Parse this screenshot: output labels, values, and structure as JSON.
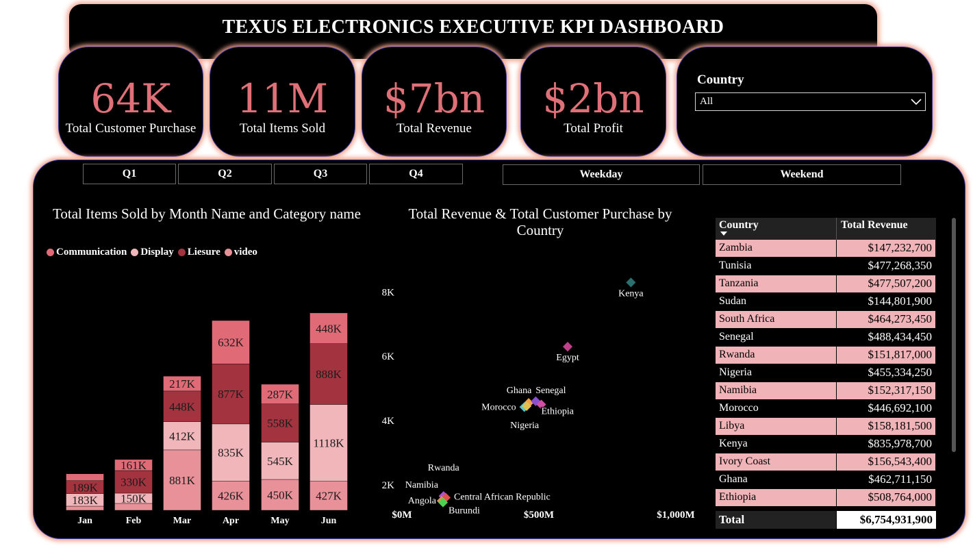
{
  "title": "TEXUS ELECTRONICS EXECUTIVE KPI DASHBOARD",
  "kpis": [
    {
      "value": "64K",
      "label": "Total Customer Purchase"
    },
    {
      "value": "11M",
      "label": "Total Items Sold"
    },
    {
      "value": "$7bn",
      "label": "Total Revenue"
    },
    {
      "value": "$2bn",
      "label": "Total Profit"
    }
  ],
  "country_slicer": {
    "title": "Country",
    "selected": "All"
  },
  "quarter_buttons": [
    "Q1",
    "Q2",
    "Q3",
    "Q4"
  ],
  "day_buttons": [
    "Weekday",
    "Weekend"
  ],
  "colors": {
    "accent": "#e07078",
    "communication": "#e06b76",
    "display": "#f0b6ba",
    "liesure": "#a3343f",
    "video": "#e89198"
  },
  "bar_chart": {
    "title": "Total Items Sold by Month Name and Category name",
    "legend": [
      "Communication",
      "Display",
      "Liesure",
      "video"
    ]
  },
  "scatter_chart": {
    "title": "Total Revenue & Total Customer Purchase by Country"
  },
  "chart_data": [
    {
      "type": "bar",
      "title": "Total Items Sold by Month Name and Category name",
      "stacked": true,
      "categories": [
        "Jan",
        "Feb",
        "Mar",
        "Apr",
        "May",
        "Jun"
      ],
      "ylim": [
        0,
        3350000
      ],
      "series": [
        {
          "name": "video",
          "values": [
            60000,
            100000,
            881000,
            426000,
            450000,
            427000
          ],
          "labels": [
            "",
            "",
            "881K",
            "426K",
            "450K",
            "427K"
          ]
        },
        {
          "name": "Display",
          "values": [
            183000,
            150000,
            412000,
            835000,
            545000,
            1118000
          ],
          "labels": [
            "183K",
            "150K",
            "412K",
            "835K",
            "545K",
            "1118K"
          ]
        },
        {
          "name": "Liesure",
          "values": [
            189000,
            330000,
            448000,
            877000,
            558000,
            888000
          ],
          "labels": [
            "189K",
            "330K",
            "448K",
            "877K",
            "558K",
            "888K"
          ]
        },
        {
          "name": "Communication",
          "values": [
            100000,
            161000,
            217000,
            632000,
            287000,
            448000
          ],
          "labels": [
            "",
            "161K",
            "217K",
            "632K",
            "287K",
            "448K"
          ]
        }
      ]
    },
    {
      "type": "scatter",
      "title": "Total Revenue & Total Customer Purchase by Country",
      "x_ticks": [
        "$0M",
        "$500M",
        "$1,000M"
      ],
      "y_ticks": [
        "2K",
        "4K",
        "6K",
        "8K"
      ],
      "xlim": [
        0,
        1000000000
      ],
      "ylim": [
        1000,
        9000
      ],
      "points": [
        {
          "name": "Kenya",
          "x": 835978700,
          "y": 8300,
          "color": "#2b6f6f"
        },
        {
          "name": "Egypt",
          "x": 605000000,
          "y": 6300,
          "color": "#c0408a"
        },
        {
          "name": "Ghana",
          "x": 462711150,
          "y": 4550,
          "color": "#f0a04a"
        },
        {
          "name": "Senegal",
          "x": 488434450,
          "y": 4600,
          "color": "#8a4fd0"
        },
        {
          "name": "Morocco",
          "x": 446692100,
          "y": 4420,
          "color": "#4fc8d0"
        },
        {
          "name": "Ethiopia",
          "x": 508764000,
          "y": 4500,
          "color": "#d04fa0"
        },
        {
          "name": "Nigeria",
          "x": 455334250,
          "y": 4450,
          "color": "#e0c050"
        },
        {
          "name": "Rwanda",
          "x": 151817000,
          "y": 1650,
          "color": "#b050d0"
        },
        {
          "name": "Namibia",
          "x": 152317150,
          "y": 1550,
          "color": "#50a0e0"
        },
        {
          "name": "Central African Republic",
          "x": 160000000,
          "y": 1600,
          "color": "#e05050"
        },
        {
          "name": "Angola",
          "x": 145000000,
          "y": 1500,
          "color": "#e09050"
        },
        {
          "name": "Burundi",
          "x": 150000000,
          "y": 1450,
          "color": "#50d050"
        }
      ]
    },
    {
      "type": "table",
      "columns": [
        "Country",
        "Total Revenue"
      ],
      "rows": [
        [
          "Zambia",
          "$147,232,700"
        ],
        [
          "Tunisia",
          "$477,268,350"
        ],
        [
          "Tanzania",
          "$477,507,200"
        ],
        [
          "Sudan",
          "$144,801,900"
        ],
        [
          "South Africa",
          "$464,273,450"
        ],
        [
          "Senegal",
          "$488,434,450"
        ],
        [
          "Rwanda",
          "$151,817,000"
        ],
        [
          "Nigeria",
          "$455,334,250"
        ],
        [
          "Namibia",
          "$152,317,150"
        ],
        [
          "Morocco",
          "$446,692,100"
        ],
        [
          "Libya",
          "$158,181,500"
        ],
        [
          "Kenya",
          "$835,978,700"
        ],
        [
          "Ivory Coast",
          "$156,543,400"
        ],
        [
          "Ghana",
          "$462,711,150"
        ],
        [
          "Ethiopia",
          "$508,764,000"
        ]
      ],
      "total_label": "Total",
      "total_value": "$6,754,931,900"
    }
  ]
}
